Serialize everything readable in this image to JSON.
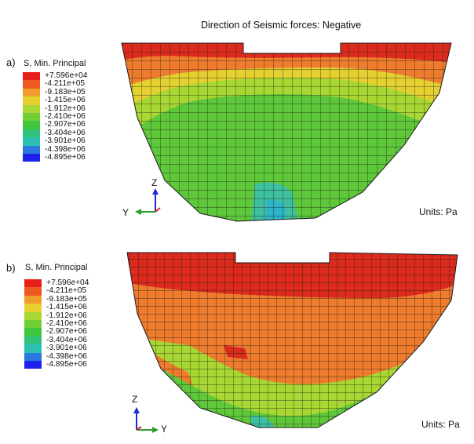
{
  "title": "Direction of Seismic forces: Negative",
  "panels": [
    {
      "label": "a)",
      "legend_title": "S, Min. Principal",
      "units": "Units: Pa",
      "axes": {
        "vertical": "Z",
        "horizontal": "Y"
      }
    },
    {
      "label": "b)",
      "legend_title": "S, Min. Principal",
      "units": "Units: Pa",
      "axes": {
        "vertical": "Z",
        "horizontal": "Y"
      }
    }
  ],
  "legend_values": [
    "+7.596e+04",
    "-4.211e+05",
    "-9.183e+05",
    "-1.415e+06",
    "-1.912e+06",
    "-2.410e+06",
    "-2.907e+06",
    "-3.404e+06",
    "-3.901e+06",
    "-4.398e+06",
    "-4.895e+06"
  ],
  "legend_colors": [
    "#e8201a",
    "#ee5a22",
    "#f29e2c",
    "#e6d12e",
    "#a8d632",
    "#6fcf34",
    "#40c63e",
    "#2ec27a",
    "#2cc0b4",
    "#2a78e0",
    "#1c22ec"
  ],
  "colors": {
    "red": "#dc2a1c",
    "orange": "#ee7c2c",
    "yellow": "#e4d02e",
    "green": "#5ec83a",
    "teal": "#3ec0a0",
    "mesh": "#1a1a1a",
    "axis_z": "#1a2ad8",
    "axis_y": "#2aa02a"
  }
}
